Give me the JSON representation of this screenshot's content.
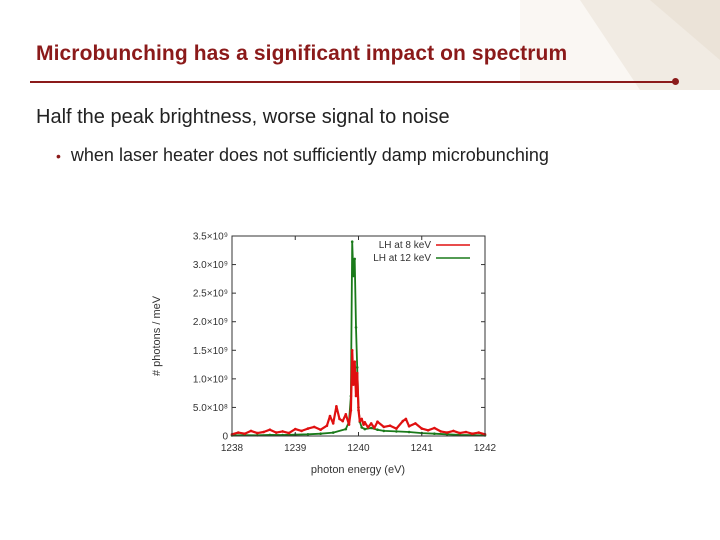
{
  "slide": {
    "title": "Microbunching has a significant impact on spectrum",
    "main_point": "Half the peak brightness, worse signal to noise",
    "bullets": [
      "when laser heater does not sufficiently damp microbunching"
    ]
  },
  "colors": {
    "title": "#8b1a1a",
    "series_8kev": "#e01010",
    "series_12kev": "#1a7a1a",
    "deco": "#f1ebe3"
  },
  "chart_data": {
    "type": "line",
    "title": "",
    "xlabel": "photon energy (eV)",
    "ylabel": "# photons / meV",
    "xlim": [
      1238,
      1242
    ],
    "ylim": [
      0,
      3500000000.0
    ],
    "x_ticks": [
      1238,
      1239,
      1240,
      1241,
      1242
    ],
    "x_tick_labels": [
      "1238",
      "1239",
      "1240",
      "1241",
      "1242"
    ],
    "y_ticks": [
      0,
      500000000.0,
      1000000000.0,
      1500000000.0,
      2000000000.0,
      2500000000.0,
      3000000000.0,
      3500000000.0
    ],
    "y_tick_labels": [
      "0",
      "5.0×10⁸",
      "1.0×10⁹",
      "1.5×10⁹",
      "2.0×10⁹",
      "2.5×10⁹",
      "3.0×10⁹",
      "3.5×10⁹"
    ],
    "legend_position": "top-right",
    "grid": false,
    "series": [
      {
        "name": "LH at 8 keV",
        "color": "#e01010",
        "x": [
          1238.0,
          1238.1,
          1238.2,
          1238.3,
          1238.4,
          1238.5,
          1238.6,
          1238.7,
          1238.8,
          1238.9,
          1239.0,
          1239.1,
          1239.2,
          1239.3,
          1239.4,
          1239.5,
          1239.55,
          1239.6,
          1239.65,
          1239.7,
          1239.75,
          1239.8,
          1239.85,
          1239.88,
          1239.9,
          1239.92,
          1239.94,
          1239.96,
          1239.98,
          1240.0,
          1240.02,
          1240.05,
          1240.08,
          1240.1,
          1240.15,
          1240.2,
          1240.25,
          1240.3,
          1240.4,
          1240.5,
          1240.6,
          1240.7,
          1240.75,
          1240.8,
          1240.9,
          1241.0,
          1241.1,
          1241.2,
          1241.3,
          1241.4,
          1241.5,
          1241.6,
          1241.7,
          1241.8,
          1241.9,
          1242.0
        ],
        "y": [
          30000000.0,
          60000000.0,
          40000000.0,
          90000000.0,
          50000000.0,
          70000000.0,
          110000000.0,
          60000000.0,
          80000000.0,
          50000000.0,
          120000000.0,
          90000000.0,
          130000000.0,
          160000000.0,
          110000000.0,
          180000000.0,
          350000000.0,
          220000000.0,
          520000000.0,
          300000000.0,
          260000000.0,
          380000000.0,
          200000000.0,
          450000000.0,
          1500000000.0,
          900000000.0,
          1300000000.0,
          700000000.0,
          1100000000.0,
          450000000.0,
          260000000.0,
          300000000.0,
          200000000.0,
          240000000.0,
          150000000.0,
          220000000.0,
          140000000.0,
          250000000.0,
          160000000.0,
          180000000.0,
          130000000.0,
          260000000.0,
          300000000.0,
          170000000.0,
          220000000.0,
          130000000.0,
          100000000.0,
          140000000.0,
          80000000.0,
          60000000.0,
          90000000.0,
          50000000.0,
          70000000.0,
          40000000.0,
          60000000.0,
          30000000.0
        ]
      },
      {
        "name": "LH at 12 keV",
        "color": "#1a7a1a",
        "x": [
          1238.0,
          1238.2,
          1238.4,
          1238.6,
          1238.8,
          1239.0,
          1239.2,
          1239.4,
          1239.6,
          1239.8,
          1239.85,
          1239.88,
          1239.9,
          1239.92,
          1239.94,
          1239.96,
          1239.98,
          1240.0,
          1240.02,
          1240.05,
          1240.1,
          1240.2,
          1240.3,
          1240.4,
          1240.6,
          1240.8,
          1241.0,
          1241.2,
          1241.4,
          1241.6,
          1241.8,
          1242.0
        ],
        "y": [
          10000000.0,
          15000000.0,
          12000000.0,
          20000000.0,
          18000000.0,
          25000000.0,
          30000000.0,
          40000000.0,
          60000000.0,
          120000000.0,
          250000000.0,
          700000000.0,
          3400000000.0,
          2800000000.0,
          3100000000.0,
          1900000000.0,
          1200000000.0,
          500000000.0,
          250000000.0,
          150000000.0,
          120000000.0,
          140000000.0,
          110000000.0,
          90000000.0,
          80000000.0,
          70000000.0,
          50000000.0,
          40000000.0,
          30000000.0,
          20000000.0,
          15000000.0,
          10000000.0
        ]
      }
    ]
  }
}
